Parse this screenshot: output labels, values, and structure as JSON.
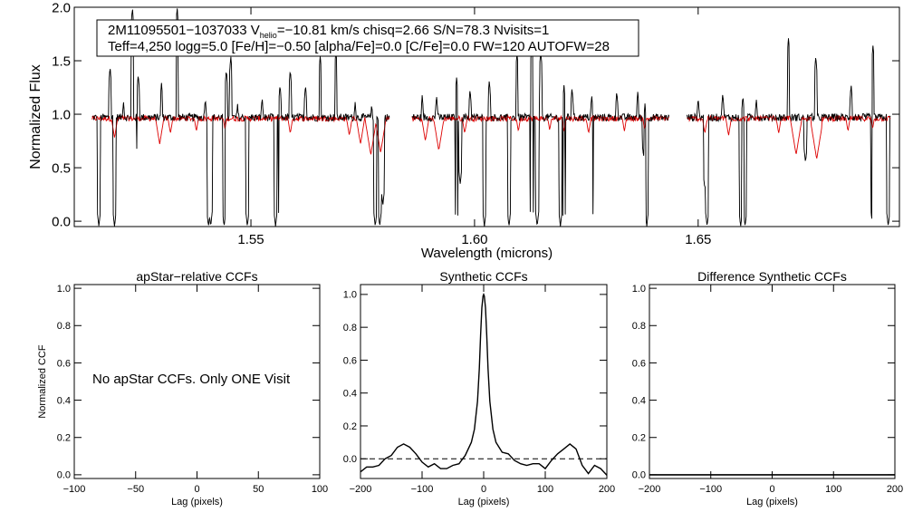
{
  "chart_data": [
    {
      "type": "line",
      "xlabel": "Wavelength (microns)",
      "ylabel": "Normalized Flux",
      "xlim": [
        1.5105,
        1.695
      ],
      "ylim": [
        -0.05,
        2.0
      ],
      "xticks": [
        1.55,
        1.6,
        1.65
      ],
      "xtick_labels": [
        "1.55",
        "1.60",
        "1.65"
      ],
      "yticks": [
        0.0,
        0.5,
        1.0,
        1.5,
        2.0
      ],
      "ytick_labels": [
        "0.0",
        "0.5",
        "1.0",
        "1.5",
        "2.0"
      ],
      "info_line1": "2M11095501−1037033  V",
      "info_sub": "helio",
      "info_line1b": "=−10.81 km/s  chisq=2.66  S/N=78.3  Nvisits=1",
      "info_line2": "Teff=4,250 logg=5.0 [Fe/H]=−0.50 [alpha/Fe]=0.0 [C/Fe]=0.0 FW=120 AUTOFW=28",
      "chips": [
        [
          1.5145,
          1.581
        ],
        [
          1.586,
          1.6435
        ],
        [
          1.6475,
          1.693
        ]
      ],
      "continuum": 0.97,
      "emission_spikes": [
        [
          1.5185,
          1.45
        ],
        [
          1.5215,
          1.12
        ],
        [
          1.5235,
          2.0
        ],
        [
          1.5248,
          1.38
        ],
        [
          1.53,
          1.3
        ],
        [
          1.5335,
          2.0
        ],
        [
          1.5398,
          1.15
        ],
        [
          1.5445,
          1.42
        ],
        [
          1.5455,
          1.55
        ],
        [
          1.547,
          1.1
        ],
        [
          1.5525,
          1.16
        ],
        [
          1.5565,
          1.28
        ],
        [
          1.5588,
          1.42
        ],
        [
          1.5622,
          1.28
        ],
        [
          1.5655,
          1.55
        ],
        [
          1.569,
          1.6
        ],
        [
          1.5733,
          1.12
        ],
        [
          1.577,
          1.1
        ],
        [
          1.5883,
          1.18
        ],
        [
          1.5915,
          1.18
        ],
        [
          1.596,
          1.35
        ],
        [
          1.599,
          1.24
        ],
        [
          1.6033,
          1.32
        ],
        [
          1.6095,
          1.58
        ],
        [
          1.6128,
          1.65
        ],
        [
          1.6148,
          1.6
        ],
        [
          1.62,
          1.28
        ],
        [
          1.6218,
          1.25
        ],
        [
          1.6262,
          1.18
        ],
        [
          1.6318,
          1.22
        ],
        [
          1.6365,
          1.22
        ],
        [
          1.6381,
          1.1
        ],
        [
          1.65,
          1.16
        ],
        [
          1.6555,
          1.2
        ],
        [
          1.66,
          1.18
        ],
        [
          1.663,
          1.15
        ],
        [
          1.6702,
          1.72
        ],
        [
          1.6763,
          1.55
        ],
        [
          1.6842,
          1.28
        ],
        [
          1.6891,
          1.65
        ]
      ],
      "absorption_drops": [
        [
          1.516,
          -0.05
        ],
        [
          1.5195,
          -0.05
        ],
        [
          1.5248,
          0.55
        ],
        [
          1.5405,
          -0.05
        ],
        [
          1.541,
          -0.05
        ],
        [
          1.544,
          -0.05
        ],
        [
          1.5492,
          -0.05
        ],
        [
          1.5555,
          -0.05
        ],
        [
          1.5565,
          -0.05
        ],
        [
          1.5778,
          -0.05
        ],
        [
          1.5788,
          -0.05
        ],
        [
          1.5795,
          0.15
        ],
        [
          1.585,
          -0.05
        ],
        [
          1.596,
          -0.05
        ],
        [
          1.5968,
          0.35
        ],
        [
          1.6022,
          -0.05
        ],
        [
          1.6077,
          -0.05
        ],
        [
          1.6128,
          -0.05
        ],
        [
          1.614,
          -0.05
        ],
        [
          1.6192,
          -0.05
        ],
        [
          1.62,
          -0.05
        ],
        [
          1.6262,
          -0.05
        ],
        [
          1.6378,
          0.6
        ],
        [
          1.6385,
          -0.05
        ],
        [
          1.6515,
          0.3
        ],
        [
          1.652,
          -0.05
        ],
        [
          1.6595,
          -0.05
        ],
        [
          1.6605,
          -0.05
        ],
        [
          1.674,
          0.55
        ],
        [
          1.689,
          -0.05
        ],
        [
          1.6925,
          -0.05
        ]
      ],
      "model_lines": [
        [
          1.5195,
          0.78
        ],
        [
          1.5296,
          0.72
        ],
        [
          1.532,
          0.82
        ],
        [
          1.5378,
          0.84
        ],
        [
          1.5442,
          0.86
        ],
        [
          1.5588,
          0.82
        ],
        [
          1.572,
          0.8
        ],
        [
          1.5745,
          0.72
        ],
        [
          1.5768,
          0.62
        ],
        [
          1.579,
          0.64
        ],
        [
          1.589,
          0.75
        ],
        [
          1.592,
          0.66
        ],
        [
          1.5978,
          0.82
        ],
        [
          1.6098,
          0.84
        ],
        [
          1.6168,
          0.85
        ],
        [
          1.62,
          0.84
        ],
        [
          1.6255,
          0.82
        ],
        [
          1.6335,
          0.84
        ],
        [
          1.638,
          0.86
        ],
        [
          1.6515,
          0.82
        ],
        [
          1.6568,
          0.8
        ],
        [
          1.668,
          0.82
        ],
        [
          1.6719,
          0.62
        ],
        [
          1.6765,
          0.58
        ],
        [
          1.6835,
          0.84
        ],
        [
          1.689,
          0.86
        ]
      ]
    },
    {
      "type": "line",
      "title": "apStar−relative CCFs",
      "xlabel": "Lag (pixels)",
      "ylabel": "Normalized CCF",
      "xlim": [
        -100,
        100
      ],
      "ylim": [
        -0.02,
        1.02
      ],
      "xticks": [
        -100,
        -50,
        0,
        50,
        100
      ],
      "xtick_labels": [
        "−100",
        "−50",
        "0",
        "50",
        "100"
      ],
      "yticks": [
        0.0,
        0.2,
        0.4,
        0.6,
        0.8,
        1.0
      ],
      "ytick_labels": [
        "0.0",
        "0.2",
        "0.4",
        "0.6",
        "0.8",
        "1.0"
      ],
      "annotation": "No apStar CCFs.  Only ONE Visit"
    },
    {
      "type": "line",
      "title": "Synthetic CCFs",
      "xlabel": "Lag (pixels)",
      "xlim": [
        -200,
        200
      ],
      "ylim": [
        -0.12,
        1.06
      ],
      "xticks": [
        -200,
        -100,
        0,
        100,
        200
      ],
      "xtick_labels": [
        "−200",
        "−100",
        "0",
        "100",
        "200"
      ],
      "yticks": [
        0.0,
        0.2,
        0.4,
        0.6,
        0.8,
        1.0
      ],
      "ytick_labels": [
        "0.0",
        "0.2",
        "0.4",
        "0.6",
        "0.8",
        "1.0"
      ],
      "zero_line": 0.0,
      "x": [
        -200,
        -190,
        -180,
        -170,
        -160,
        -150,
        -140,
        -130,
        -120,
        -110,
        -100,
        -90,
        -80,
        -70,
        -60,
        -50,
        -40,
        -30,
        -20,
        -15,
        -10,
        -7,
        -5,
        -3,
        -1,
        0,
        1,
        3,
        5,
        7,
        10,
        15,
        20,
        30,
        40,
        50,
        60,
        70,
        80,
        90,
        100,
        110,
        120,
        130,
        140,
        150,
        160,
        170,
        180,
        190,
        200
      ],
      "y": [
        -0.08,
        -0.05,
        -0.05,
        -0.04,
        0.0,
        0.02,
        0.07,
        0.09,
        0.07,
        0.03,
        -0.02,
        -0.05,
        -0.03,
        -0.06,
        -0.06,
        -0.04,
        -0.03,
        0.02,
        0.1,
        0.18,
        0.35,
        0.55,
        0.75,
        0.92,
        0.99,
        1.0,
        0.99,
        0.92,
        0.75,
        0.55,
        0.35,
        0.18,
        0.1,
        0.04,
        0.03,
        -0.01,
        -0.03,
        -0.04,
        -0.03,
        -0.03,
        -0.06,
        -0.01,
        0.03,
        0.06,
        0.09,
        0.06,
        -0.04,
        -0.09,
        -0.04,
        -0.06,
        -0.1
      ]
    },
    {
      "type": "line",
      "title": "Difference Synthetic CCFs",
      "xlabel": "Lag (pixels)",
      "xlim": [
        -200,
        200
      ],
      "ylim": [
        -0.02,
        1.02
      ],
      "xticks": [
        -200,
        -100,
        0,
        100,
        200
      ],
      "xtick_labels": [
        "−200",
        "−100",
        "0",
        "100",
        "200"
      ],
      "yticks": [
        0.0,
        0.2,
        0.4,
        0.6,
        0.8,
        1.0
      ],
      "ytick_labels": [
        "0.0",
        "0.2",
        "0.4",
        "0.6",
        "0.8",
        "1.0"
      ],
      "x": [
        -200,
        200
      ],
      "y": [
        0.0,
        0.0
      ]
    }
  ],
  "colors": {
    "observed": "#000000",
    "model": "#dd0000"
  }
}
